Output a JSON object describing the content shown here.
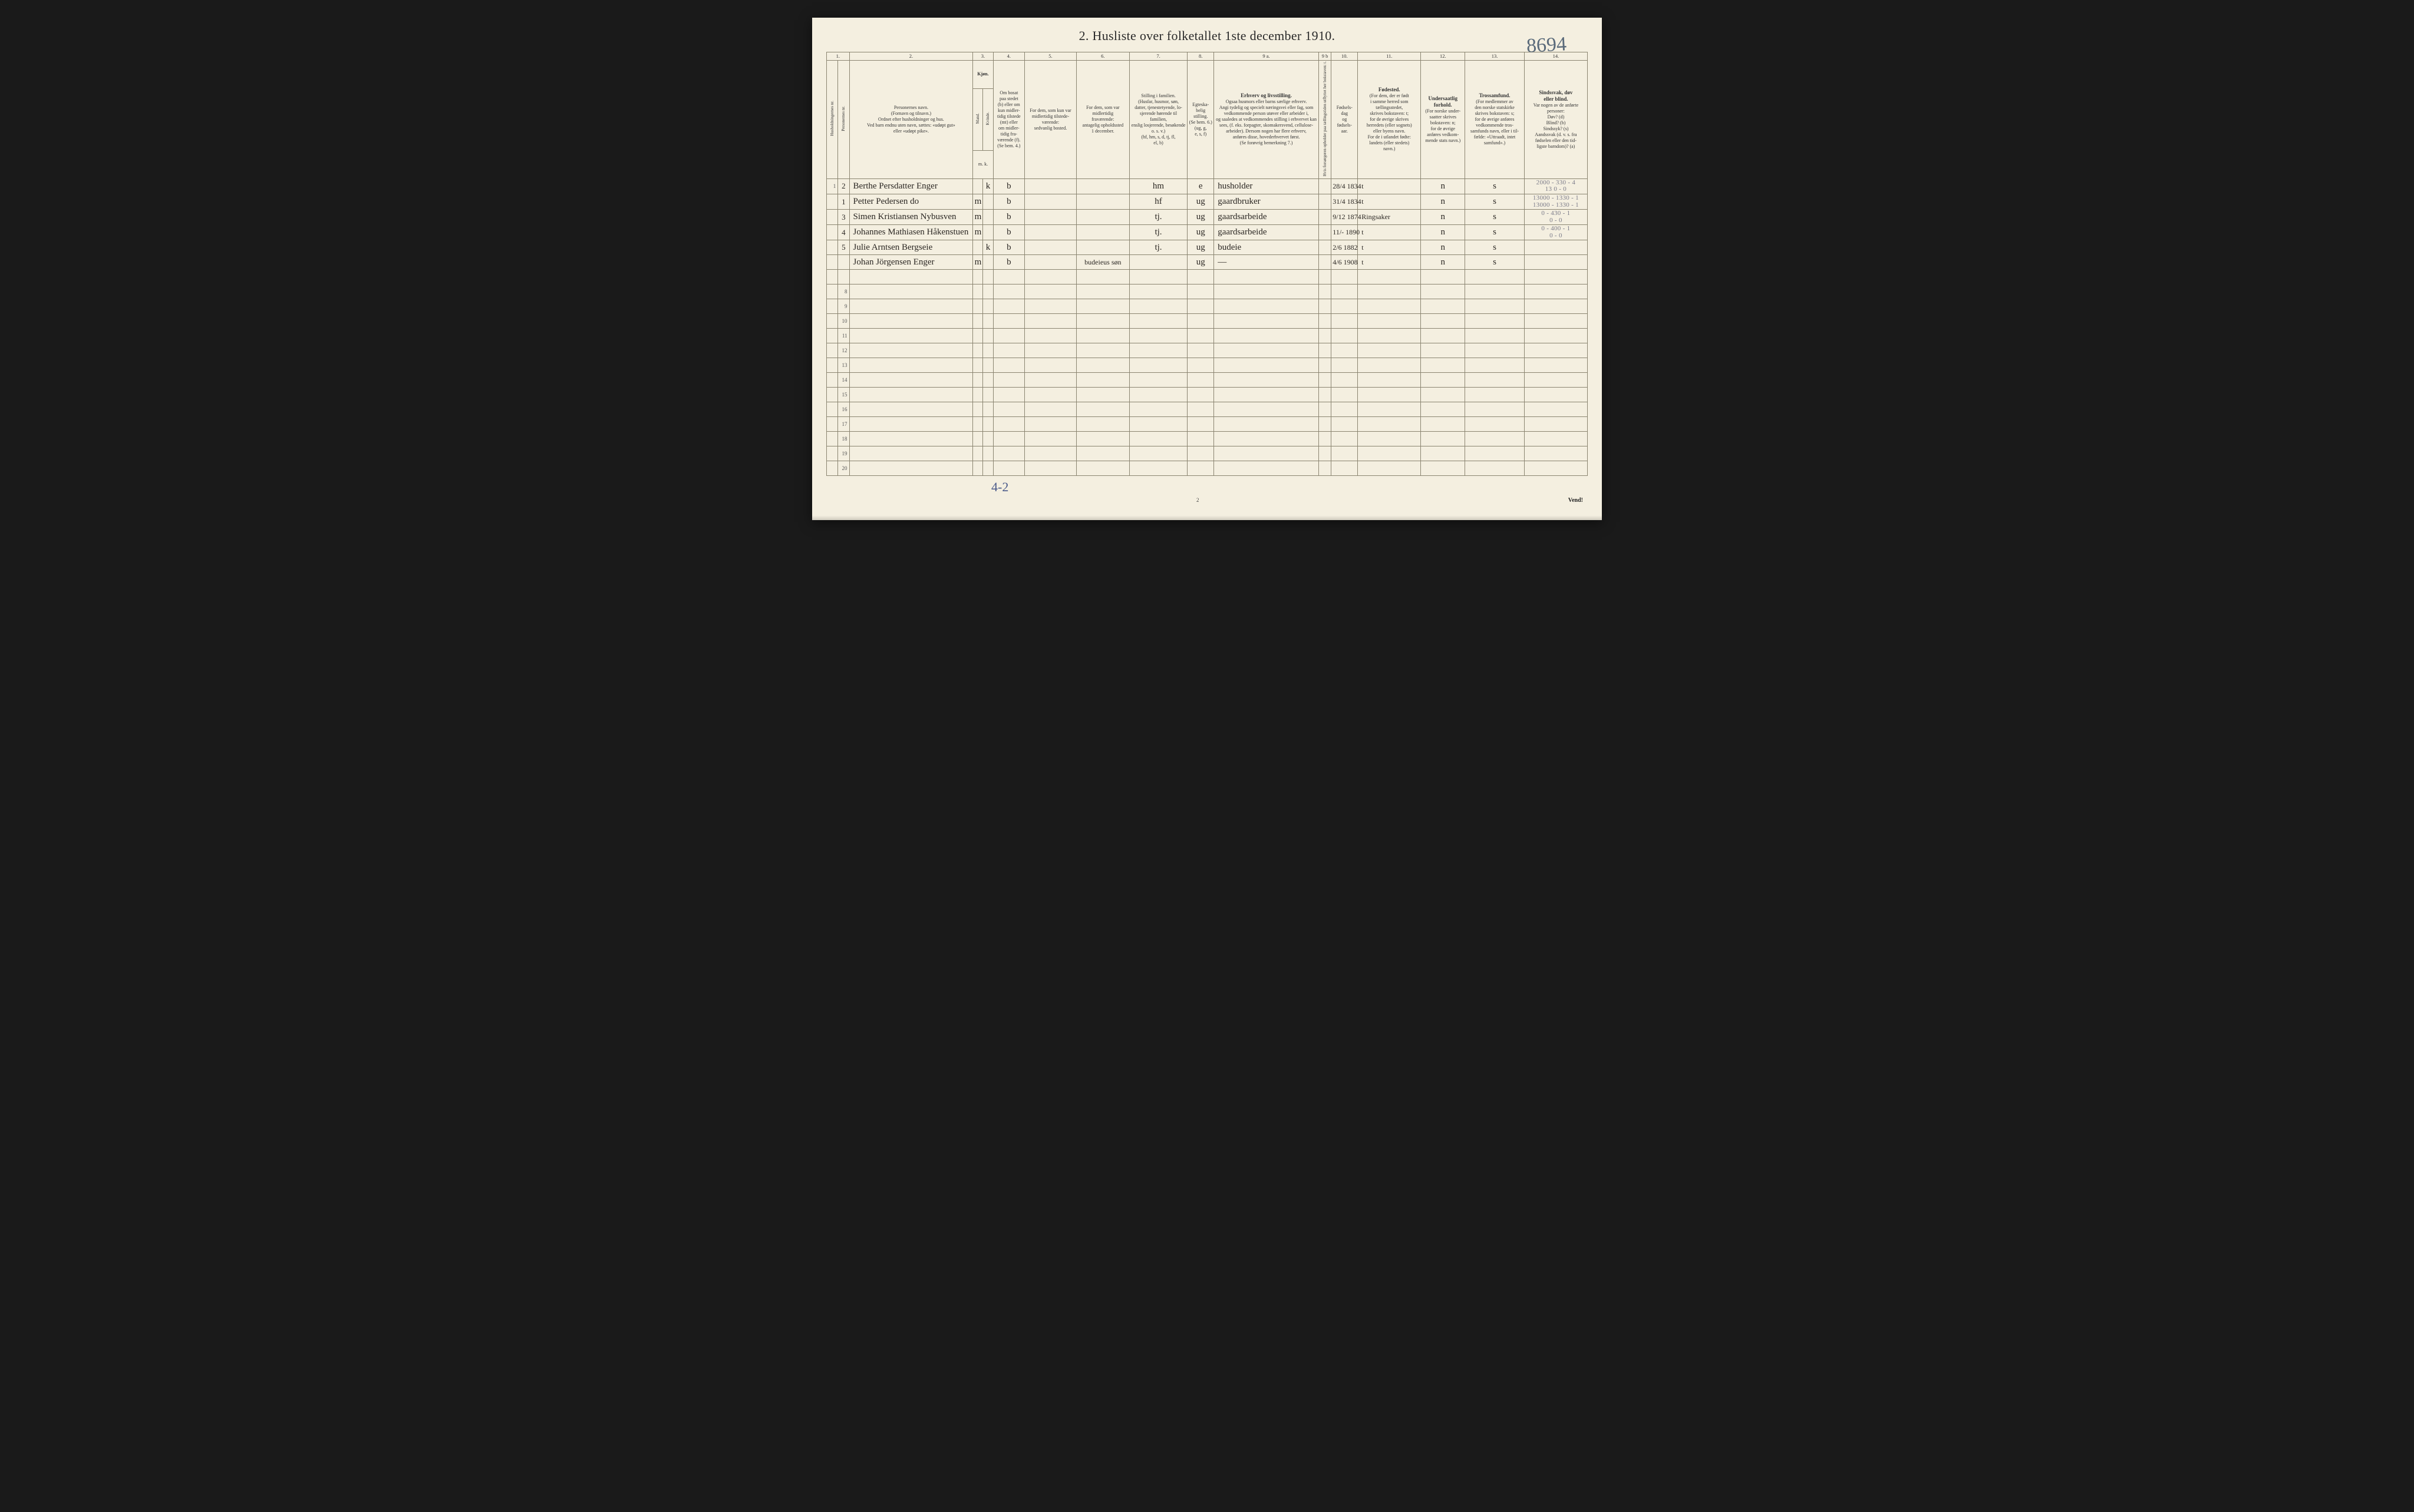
{
  "title": "2.  Husliste over folketallet 1ste december 1910.",
  "top_annotation": "8694",
  "bottom_annotation": "4-2",
  "page_number": "2",
  "vend": "Vend!",
  "colors": {
    "paper": "#f4efe0",
    "ink_print": "#2a2a2a",
    "ink_hand": "#2a2622",
    "pencil": "#7a7a88",
    "blue_pencil": "#4a5a8a",
    "rule": "#8a8470"
  },
  "header": {
    "nums": [
      "1.",
      "2.",
      "3.",
      "4.",
      "5.",
      "6.",
      "7.",
      "8.",
      "9 a.",
      "9 b",
      "10.",
      "11.",
      "12.",
      "13.",
      "14."
    ],
    "c1a": "Husholdningernes nr.",
    "c1b": "Personernes nr.",
    "c2": "Personernes navn.\n(Fornavn og tilnavn.)\nOrdnet efter husholdninger og hus.\nVed barn endnu uten navn, sættes: «udøpt gut»\neller «udøpt pike».",
    "c3_top": "Kjøn.",
    "c3_m": "Mand.",
    "c3_k": "Kvinde.",
    "c3_mk": "m.  k.",
    "c4": "Om bosat\npaa stedet\n(b) eller om\nkun midler-\ntidig tilstede\n(mt) eller\nom midler-\ntidig fra-\nværende (f).\n(Se bem. 4.)",
    "c5": "For dem, som kun var\nmidlertidig tilstede-\nværende:\nsedvanlig bosted.",
    "c6": "For dem, som var\nmidlertidig\nfraværende:\nantagelig opholdssted\n1 december.",
    "c7": "Stilling i familien.\n(Husfar, husmor, søn,\ndatter, tjenestetyende, lo-\nsjerende hørende til familien,\nenslig losjerende, besøkende\no. s. v.)\n(hf, hm, s, d, tj, fl,\nel, b)",
    "c8": "Egteska-\nbelig\nstilling.\n(Se bem. 6.)\n(ug, g,\ne, s, f)",
    "c9a_bold": "Erhverv og livsstilling.",
    "c9a": "Ogsaa husmors eller barns særlige erhverv.\nAngi tydelig og specielt næringsvei eller fag, som\nvedkommende person utøver eller arbeider i,\nog saaledes at vedkommendes stilling i erhvervet kan\nsees, (f. eks. forpagter, skomakersvend, cellulose-\narbeider). Dersom nogen har flere erhverv,\nanføres disse, hovederhvervet først.\n(Se forøvrig bemerkning 7.)",
    "c9b": "Hvis forsørgeren opholder\npaa tællingstiden utflyttet\nher bokstaven: t.",
    "c10": "Fødsels-\ndag\nog\nfødsels-\naar.",
    "c11_bold": "Fødested.",
    "c11": "(For dem, der er født\ni samme herred som\ntællingsstedet,\nskrives bokstaven: t;\nfor de øvrige skrives\nherredets (eller sognets)\neller byens navn.\nFor de i utlandet fødte:\nlandets (eller stedets)\nnavn.)",
    "c12_bold": "Undersaatlig\nforhold.",
    "c12": "(For norske under-\nsaatter skrives\nbokstaven: n;\nfor de øvrige\nanføres vedkom-\nmende stats navn.)",
    "c13_bold": "Trossamfund.",
    "c13": "(For medlemmer av\nden norske statskirke\nskrives bokstaven: s;\nfor de øvrige anføres\nvedkommende tros-\nsamfunds navn, eller i til-\nfælde: «Uttraadt, intet\nsamfund».)",
    "c14_bold": "Sindssvak, døv\neller blind.",
    "c14": "Var nogen av de anførte\npersoner:\nDøv?        (d)\nBlind?      (b)\nSindssyk? (s)\nAandssvak (d. v. s. fra\nfødselen eller den tid-\nligste barndom)?  (a)"
  },
  "rows": [
    {
      "hh": "1",
      "p": "2",
      "name": "Berthe Persdatter Enger",
      "m": "",
      "k": "k",
      "res": "b",
      "c5": "",
      "c6": "",
      "fam": "hm",
      "eg": "e",
      "erhv": "husholder",
      "c9b": "",
      "dob": "28/4 1834",
      "fod": "t",
      "und": "n",
      "tro": "s",
      "c14": "2000 - 330 - 4\n13   0 - 0"
    },
    {
      "hh": "",
      "p": "1",
      "name": "Petter Pedersen  do",
      "m": "m",
      "k": "",
      "res": "b",
      "c5": "",
      "c6": "",
      "fam": "hf",
      "eg": "ug",
      "erhv": "gaardbruker",
      "c9b": "",
      "dob": "31/4 1834",
      "fod": "t",
      "und": "n",
      "tro": "s",
      "c14": "13000 - 1330 - 1\n13000 - 1330 - 1"
    },
    {
      "hh": "",
      "p": "3",
      "name": "Simen Kristiansen Nybusven",
      "m": "m",
      "k": "",
      "res": "b",
      "c5": "",
      "c6": "",
      "fam": "tj.",
      "eg": "ug",
      "erhv": "gaardsarbeide",
      "c9b": "",
      "dob": "9/12 1874",
      "fod": "Ringsaker",
      "und": "n",
      "tro": "s",
      "c14": "0 - 430 - 1\n0 - 0"
    },
    {
      "hh": "",
      "p": "4",
      "name": "Johannes Mathiasen Håkenstuen",
      "m": "m",
      "k": "",
      "res": "b",
      "c5": "",
      "c6": "",
      "fam": "tj.",
      "eg": "ug",
      "erhv": "gaardsarbeide",
      "c9b": "",
      "dob": "11/- 1890",
      "fod": "t",
      "und": "n",
      "tro": "s",
      "c14": "0 - 400 - 1\n0 - 0"
    },
    {
      "hh": "",
      "p": "5",
      "name": "Julie Arntsen  Bergseie",
      "m": "",
      "k": "k",
      "res": "b",
      "c5": "",
      "c6": "",
      "fam": "tj.",
      "eg": "ug",
      "erhv": "budeie",
      "c9b": "",
      "dob": "2/6 1882",
      "fod": "t",
      "und": "n",
      "tro": "s",
      "c14": ""
    },
    {
      "hh": "",
      "p": "",
      "name": "Johan Jörgensen Enger",
      "m": "m",
      "k": "",
      "res": "b",
      "c5": "",
      "c6": "budeieus søn",
      "fam": "",
      "eg": "ug",
      "erhv": "—",
      "c9b": "",
      "dob": "4/6 1908",
      "fod": "t",
      "und": "n",
      "tro": "s",
      "c14": ""
    }
  ],
  "empty_row_labels": [
    "",
    "8",
    "9",
    "10",
    "11",
    "12",
    "13",
    "14",
    "15",
    "16",
    "17",
    "18",
    "19",
    "20"
  ]
}
